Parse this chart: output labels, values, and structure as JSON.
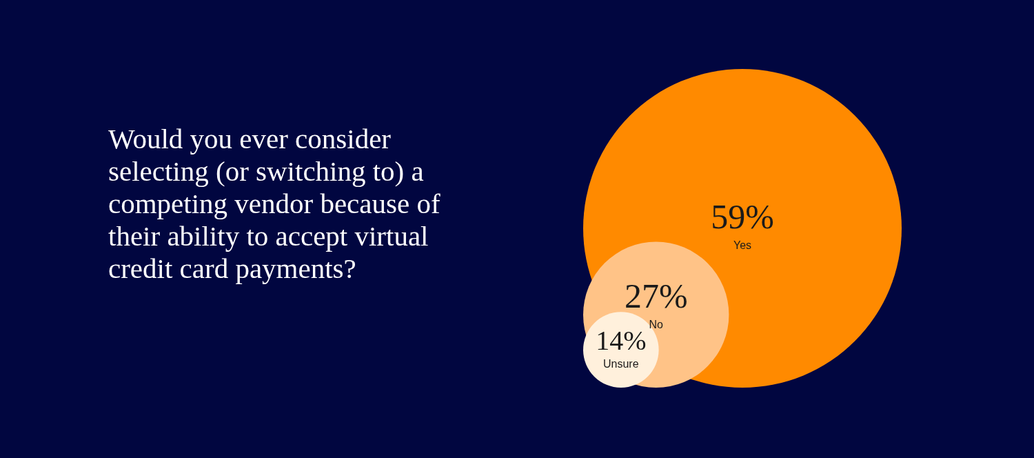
{
  "chart_data": {
    "type": "other",
    "title": "Would you ever consider selecting (or switching to) a competing vendor because of their ability to accept virtual credit card payments?",
    "categories": [
      "Yes",
      "No",
      "Unsure"
    ],
    "values": [
      59,
      27,
      14
    ],
    "value_labels": [
      "59%",
      "27%",
      "14%"
    ],
    "colors": [
      "#ff8a00",
      "#ffc387",
      "#fff0dc"
    ]
  }
}
